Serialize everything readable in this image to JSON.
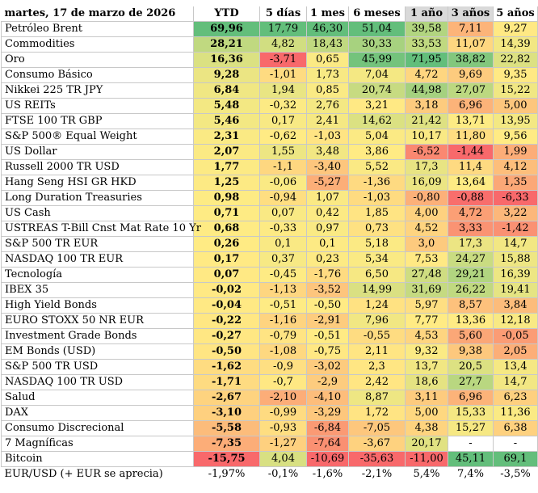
{
  "header": {
    "date": "martes, 17 de marzo de 2026",
    "columns": [
      "YTD",
      "5 días",
      "1 mes",
      "6 meses",
      "1 año",
      "3 años",
      "5 años"
    ]
  },
  "rows": [
    {
      "name": "Petróleo Brent",
      "values": [
        "69,96",
        "17,79",
        "46,30",
        "51,04",
        "39,58",
        "7,11",
        "9,27"
      ]
    },
    {
      "name": "Commodities",
      "values": [
        "28,21",
        "4,82",
        "18,43",
        "30,33",
        "33,53",
        "11,07",
        "14,39"
      ]
    },
    {
      "name": "Oro",
      "values": [
        "16,36",
        "-3,71",
        "0,65",
        "45,99",
        "71,95",
        "38,82",
        "22,82"
      ]
    },
    {
      "name": "Consumo Básico",
      "values": [
        "9,28",
        "-1,01",
        "1,73",
        "7,04",
        "4,72",
        "9,69",
        "9,35"
      ]
    },
    {
      "name": "Nikkei 225 TR JPY",
      "values": [
        "6,84",
        "1,94",
        "0,85",
        "20,74",
        "44,98",
        "27,07",
        "15,22"
      ]
    },
    {
      "name": "US REITs",
      "values": [
        "5,48",
        "-0,32",
        "2,76",
        "3,21",
        "3,18",
        "6,96",
        "5,00"
      ]
    },
    {
      "name": "FTSE 100 TR GBP",
      "values": [
        "5,46",
        "0,17",
        "2,41",
        "14,62",
        "21,42",
        "13,71",
        "13,95"
      ]
    },
    {
      "name": "S&P 500® Equal Weight",
      "values": [
        "2,31",
        "-0,62",
        "-1,03",
        "5,04",
        "10,17",
        "11,80",
        "9,56"
      ]
    },
    {
      "name": "US Dollar",
      "values": [
        "2,07",
        "1,55",
        "3,48",
        "3,86",
        "-6,52",
        "-1,44",
        "1,99"
      ]
    },
    {
      "name": "Russell 2000 TR USD",
      "values": [
        "1,77",
        "-1,1",
        "-3,40",
        "5,52",
        "17,3",
        "11,4",
        "4,12"
      ]
    },
    {
      "name": "Hang Seng HSI GR HKD",
      "values": [
        "1,25",
        "-0,06",
        "-5,27",
        "-1,36",
        "16,09",
        "13,64",
        "1,35"
      ]
    },
    {
      "name": "Long Duration Treasuries",
      "values": [
        "0,98",
        "-0,94",
        "1,07",
        "-1,03",
        "-0,80",
        "-0,88",
        "-6,33"
      ]
    },
    {
      "name": "US Cash",
      "values": [
        "0,71",
        "0,07",
        "0,42",
        "1,85",
        "4,00",
        "4,72",
        "3,22"
      ]
    },
    {
      "name": "USTREAS T-Bill Cnst Mat Rate 10 Yr",
      "values": [
        "0,68",
        "-0,33",
        "0,97",
        "0,73",
        "4,52",
        "3,33",
        "-1,42"
      ]
    },
    {
      "name": "S&P 500 TR EUR",
      "values": [
        "0,26",
        "0,1",
        "0,1",
        "5,18",
        "3,0",
        "17,3",
        "14,7"
      ]
    },
    {
      "name": "NASDAQ 100 TR EUR",
      "values": [
        "0,17",
        "0,37",
        "0,23",
        "5,34",
        "7,53",
        "24,27",
        "15,88"
      ]
    },
    {
      "name": "Tecnología",
      "values": [
        "0,07",
        "-0,45",
        "-1,76",
        "6,50",
        "27,48",
        "29,21",
        "16,39"
      ]
    },
    {
      "name": "IBEX 35",
      "values": [
        "-0,02",
        "-1,13",
        "-3,52",
        "14,99",
        "31,69",
        "26,22",
        "19,41"
      ]
    },
    {
      "name": "High Yield Bonds",
      "values": [
        "-0,04",
        "-0,51",
        "-0,50",
        "1,24",
        "5,97",
        "8,57",
        "3,84"
      ]
    },
    {
      "name": "EURO STOXX 50 NR EUR",
      "values": [
        "-0,22",
        "-1,16",
        "-2,91",
        "7,96",
        "7,77",
        "13,36",
        "12,18"
      ]
    },
    {
      "name": "Investment Grade Bonds",
      "values": [
        "-0,27",
        "-0,79",
        "-0,51",
        "-0,55",
        "4,53",
        "5,60",
        "-0,05"
      ]
    },
    {
      "name": "EM Bonds (USD)",
      "values": [
        "-0,50",
        "-1,08",
        "-0,75",
        "2,11",
        "9,32",
        "9,38",
        "2,05"
      ]
    },
    {
      "name": "S&P 500 TR USD",
      "values": [
        "-1,62",
        "-0,9",
        "-3,02",
        "2,3",
        "13,7",
        "20,5",
        "13,4"
      ]
    },
    {
      "name": "NASDAQ 100 TR USD",
      "values": [
        "-1,71",
        "-0,7",
        "-2,9",
        "2,42",
        "18,6",
        "27,7",
        "14,7"
      ]
    },
    {
      "name": "Salud",
      "values": [
        "-2,67",
        "-2,10",
        "-4,10",
        "8,87",
        "3,11",
        "6,96",
        "6,23"
      ]
    },
    {
      "name": "DAX",
      "values": [
        "-3,10",
        "-0,99",
        "-3,29",
        "1,72",
        "5,00",
        "15,33",
        "11,36"
      ]
    },
    {
      "name": "Consumo Discrecional",
      "values": [
        "-5,58",
        "-0,93",
        "-6,84",
        "-7,05",
        "4,38",
        "15,27",
        "6,38"
      ]
    },
    {
      "name": "7 Magníficas",
      "values": [
        "-7,35",
        "-1,27",
        "-7,64",
        "-3,67",
        "20,17",
        "-",
        "-"
      ]
    },
    {
      "name": "Bitcoin",
      "values": [
        "-15,75",
        "4,04",
        "-10,69",
        "-35,63",
        "-11,00",
        "45,11",
        "69,1"
      ]
    }
  ],
  "footer": {
    "name": "EUR/USD (+ EUR se aprecia)",
    "values": [
      "-1,97%",
      "-0,1%",
      "-1,6%",
      "-2,1%",
      "5,4%",
      "7,4%",
      "-3,5%"
    ]
  },
  "colors": {
    "green": "#63be7b",
    "yellow": "#ffeb84",
    "red": "#f8696b",
    "header_highlight": "#d9d9d9"
  }
}
